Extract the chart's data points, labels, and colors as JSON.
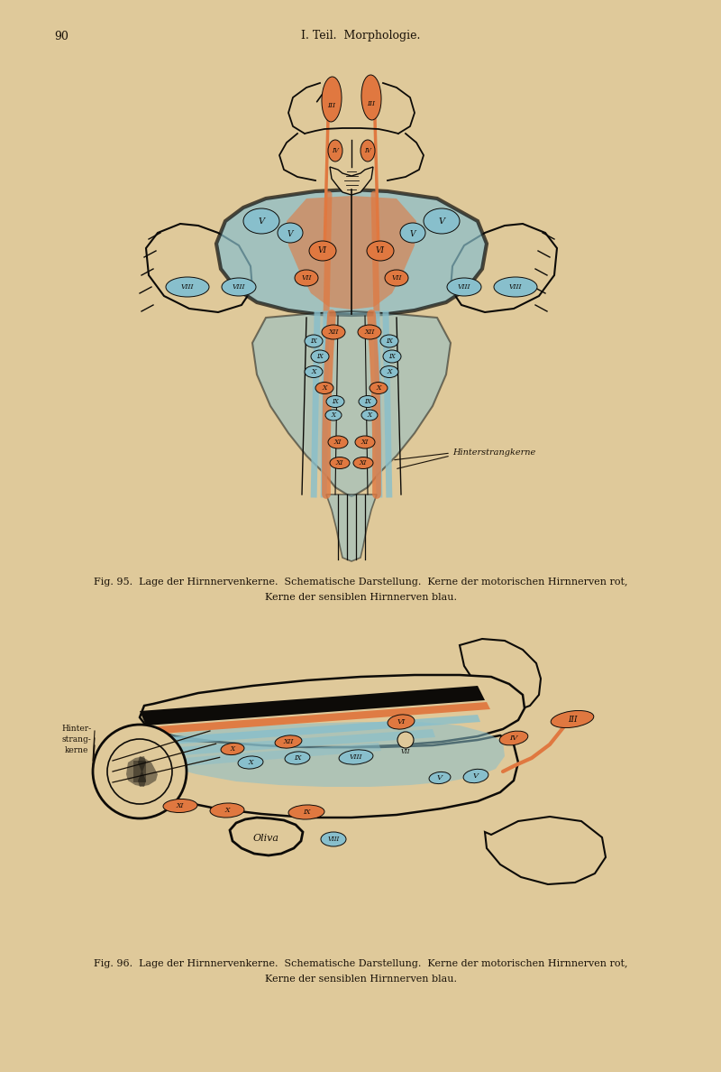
{
  "bg_color": "#dfc99a",
  "text_color": "#1a1208",
  "page_num": "90",
  "header": "I. Teil.  Morphologie.",
  "fig95_caption_line1": "Fig. 95.  Lage der Hirnnervenkerne.  Schematische Darstellung.  Kerne der motorischen Hirnnerven rot,",
  "fig95_caption_line2": "Kerne der sensiblen Hirnnerven blau.",
  "fig96_caption_line1": "Fig. 96.  Lage der Hirnnervenkerne.  Schematische Darstellung.  Kerne der motorischen Hirnnerven rot,",
  "fig96_caption_line2": "Kerne der sensiblen Hirnnerven blau.",
  "orange_color": "#e07840",
  "blue_color": "#88bfcc",
  "black_color": "#0d0b08",
  "hinterstrang_label": "Hinterstrangkerne",
  "hinterstrang_label2_line1": "Hinter-",
  "hinterstrang_label2_line2": "strang-",
  "hinterstrang_label2_line3": "kerne",
  "oliva_label": "Oliva"
}
